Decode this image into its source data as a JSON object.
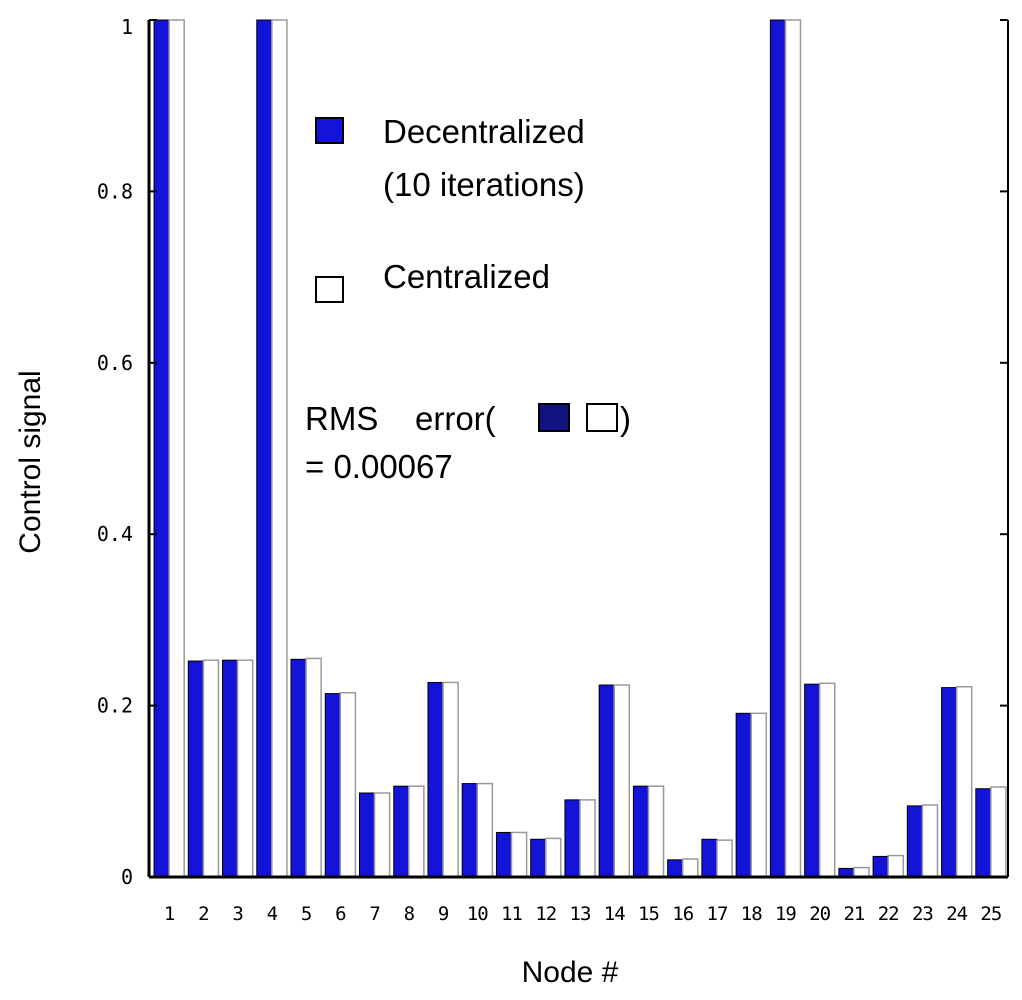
{
  "chart_data": {
    "type": "bar",
    "xlabel": "Node #",
    "ylabel": "Control signal",
    "ylim": [
      0,
      1
    ],
    "yticks": [
      "0",
      "0.2",
      "0.4",
      "0.6",
      "0.8",
      "1"
    ],
    "categories": [
      "1",
      "2",
      "3",
      "4",
      "5",
      "6",
      "7",
      "8",
      "9",
      "10",
      "11",
      "12",
      "13",
      "14",
      "15",
      "16",
      "17",
      "18",
      "19",
      "20",
      "21",
      "22",
      "23",
      "24",
      "25"
    ],
    "series": [
      {
        "name": "Decentralized (10 iterations)",
        "legend_line1": "Decentralized",
        "legend_line2": "(10 iterations)",
        "color": "#1414d8",
        "values": [
          1.0,
          0.252,
          0.253,
          1.0,
          0.254,
          0.214,
          0.098,
          0.106,
          0.227,
          0.109,
          0.052,
          0.044,
          0.09,
          0.224,
          0.106,
          0.02,
          0.044,
          0.191,
          1.0,
          0.225,
          0.01,
          0.024,
          0.083,
          0.221,
          0.103
        ]
      },
      {
        "name": "Centralized",
        "legend_line1": "Centralized",
        "color": "#ffffff",
        "values": [
          1.0,
          0.253,
          0.253,
          1.0,
          0.255,
          0.215,
          0.098,
          0.106,
          0.227,
          0.109,
          0.052,
          0.045,
          0.09,
          0.224,
          0.106,
          0.021,
          0.043,
          0.191,
          1.0,
          0.226,
          0.011,
          0.025,
          0.084,
          0.222,
          0.105
        ]
      }
    ],
    "annotation": {
      "line1_prefix": "RMS",
      "line1_word": "error(",
      "line1_suffix": ")",
      "line2": "= 0.00067"
    },
    "legend_position": "upper-center",
    "grid": false
  }
}
